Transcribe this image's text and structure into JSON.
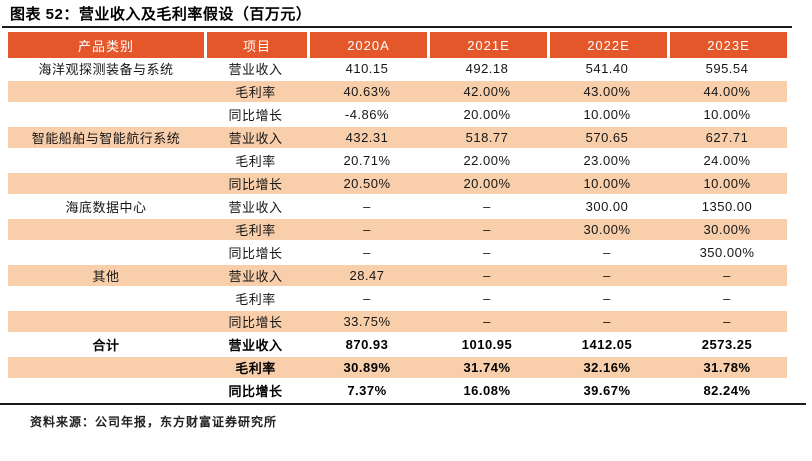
{
  "chart_data": {
    "type": "table",
    "title": "图表 52：营业收入及毛利率假设（百万元）",
    "columns": [
      "产品类别",
      "项目",
      "2020A",
      "2021E",
      "2022E",
      "2023E"
    ],
    "rows": [
      {
        "category": "海洋观探测装备与系统",
        "item": "营业收入",
        "values": [
          "410.15",
          "492.18",
          "541.40",
          "595.54"
        ],
        "stripe": false,
        "bold": false
      },
      {
        "category": "",
        "item": "毛利率",
        "values": [
          "40.63%",
          "42.00%",
          "43.00%",
          "44.00%"
        ],
        "stripe": true,
        "bold": false
      },
      {
        "category": "",
        "item": "同比增长",
        "values": [
          "-4.86%",
          "20.00%",
          "10.00%",
          "10.00%"
        ],
        "stripe": false,
        "bold": false
      },
      {
        "category": "智能船舶与智能航行系统",
        "item": "营业收入",
        "values": [
          "432.31",
          "518.77",
          "570.65",
          "627.71"
        ],
        "stripe": true,
        "bold": false
      },
      {
        "category": "",
        "item": "毛利率",
        "values": [
          "20.71%",
          "22.00%",
          "23.00%",
          "24.00%"
        ],
        "stripe": false,
        "bold": false
      },
      {
        "category": "",
        "item": "同比增长",
        "values": [
          "20.50%",
          "20.00%",
          "10.00%",
          "10.00%"
        ],
        "stripe": true,
        "bold": false
      },
      {
        "category": "海底数据中心",
        "item": "营业收入",
        "values": [
          "–",
          "–",
          "300.00",
          "1350.00"
        ],
        "stripe": false,
        "bold": false
      },
      {
        "category": "",
        "item": "毛利率",
        "values": [
          "–",
          "–",
          "30.00%",
          "30.00%"
        ],
        "stripe": true,
        "bold": false
      },
      {
        "category": "",
        "item": "同比增长",
        "values": [
          "–",
          "–",
          "–",
          "350.00%"
        ],
        "stripe": false,
        "bold": false
      },
      {
        "category": "其他",
        "item": "营业收入",
        "values": [
          "28.47",
          "–",
          "–",
          "–"
        ],
        "stripe": true,
        "bold": false
      },
      {
        "category": "",
        "item": "毛利率",
        "values": [
          "–",
          "–",
          "–",
          "–"
        ],
        "stripe": false,
        "bold": false
      },
      {
        "category": "",
        "item": "同比增长",
        "values": [
          "33.75%",
          "–",
          "–",
          "–"
        ],
        "stripe": true,
        "bold": false
      },
      {
        "category": "合计",
        "item": "营业收入",
        "values": [
          "870.93",
          "1010.95",
          "1412.05",
          "2573.25"
        ],
        "stripe": false,
        "bold": true
      },
      {
        "category": "",
        "item": "毛利率",
        "values": [
          "30.89%",
          "31.74%",
          "32.16%",
          "31.78%"
        ],
        "stripe": true,
        "bold": true
      },
      {
        "category": "",
        "item": "同比增长",
        "values": [
          "7.37%",
          "16.08%",
          "39.67%",
          "82.24%"
        ],
        "stripe": false,
        "bold": true
      }
    ],
    "source": "资料来源：公司年报，东方财富证券研究所"
  },
  "colors": {
    "header_bg": "#E3572B",
    "stripe_bg": "#F9CFAB",
    "header_text": "#FFFFFF",
    "rule": "#1A1A1A"
  }
}
